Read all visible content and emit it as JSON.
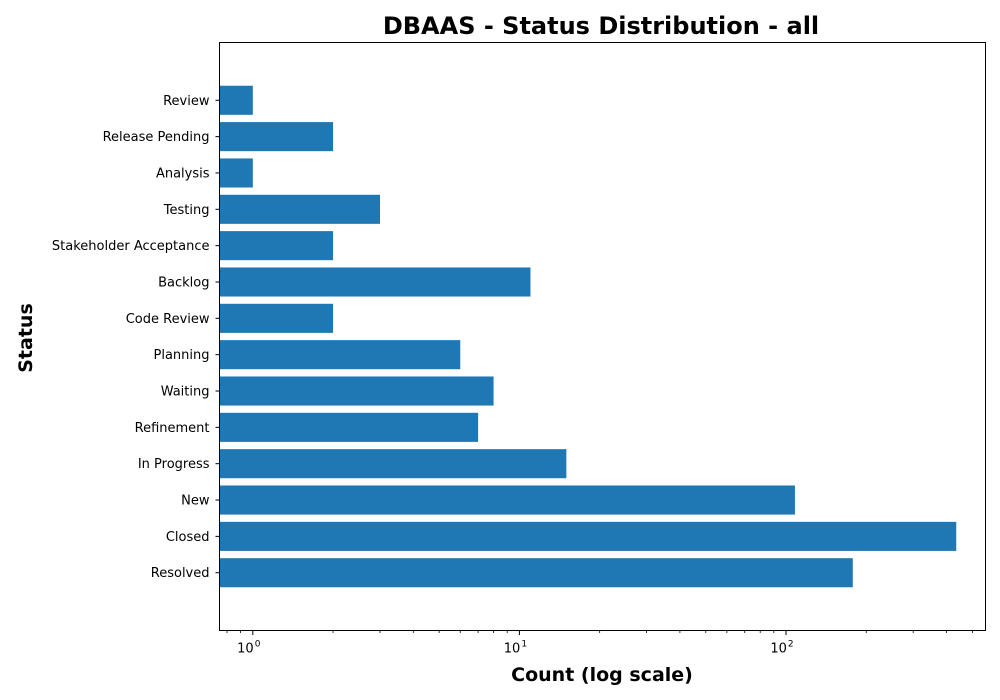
{
  "chart_data": {
    "type": "bar",
    "orientation": "horizontal",
    "title": "DBAAS - Status Distribution - all",
    "xlabel": "Count (log scale)",
    "ylabel": "Status",
    "xscale": "log",
    "xlim": [
      0.75,
      560
    ],
    "x_ticks": [
      {
        "value": 1,
        "base": "10",
        "exp": "0"
      },
      {
        "value": 10,
        "base": "10",
        "exp": "1"
      },
      {
        "value": 100,
        "base": "10",
        "exp": "2"
      }
    ],
    "categories": [
      "Resolved",
      "Closed",
      "New",
      "In Progress",
      "Refinement",
      "Waiting",
      "Planning",
      "Code Review",
      "Backlog",
      "Stakeholder Acceptance",
      "Testing",
      "Analysis",
      "Release Pending",
      "Review"
    ],
    "values": [
      178,
      435,
      108,
      15,
      7,
      8,
      6,
      2,
      11,
      2,
      3,
      1,
      2,
      1
    ],
    "bar_color": "#1f77b4",
    "grid": false,
    "legend": "none"
  }
}
